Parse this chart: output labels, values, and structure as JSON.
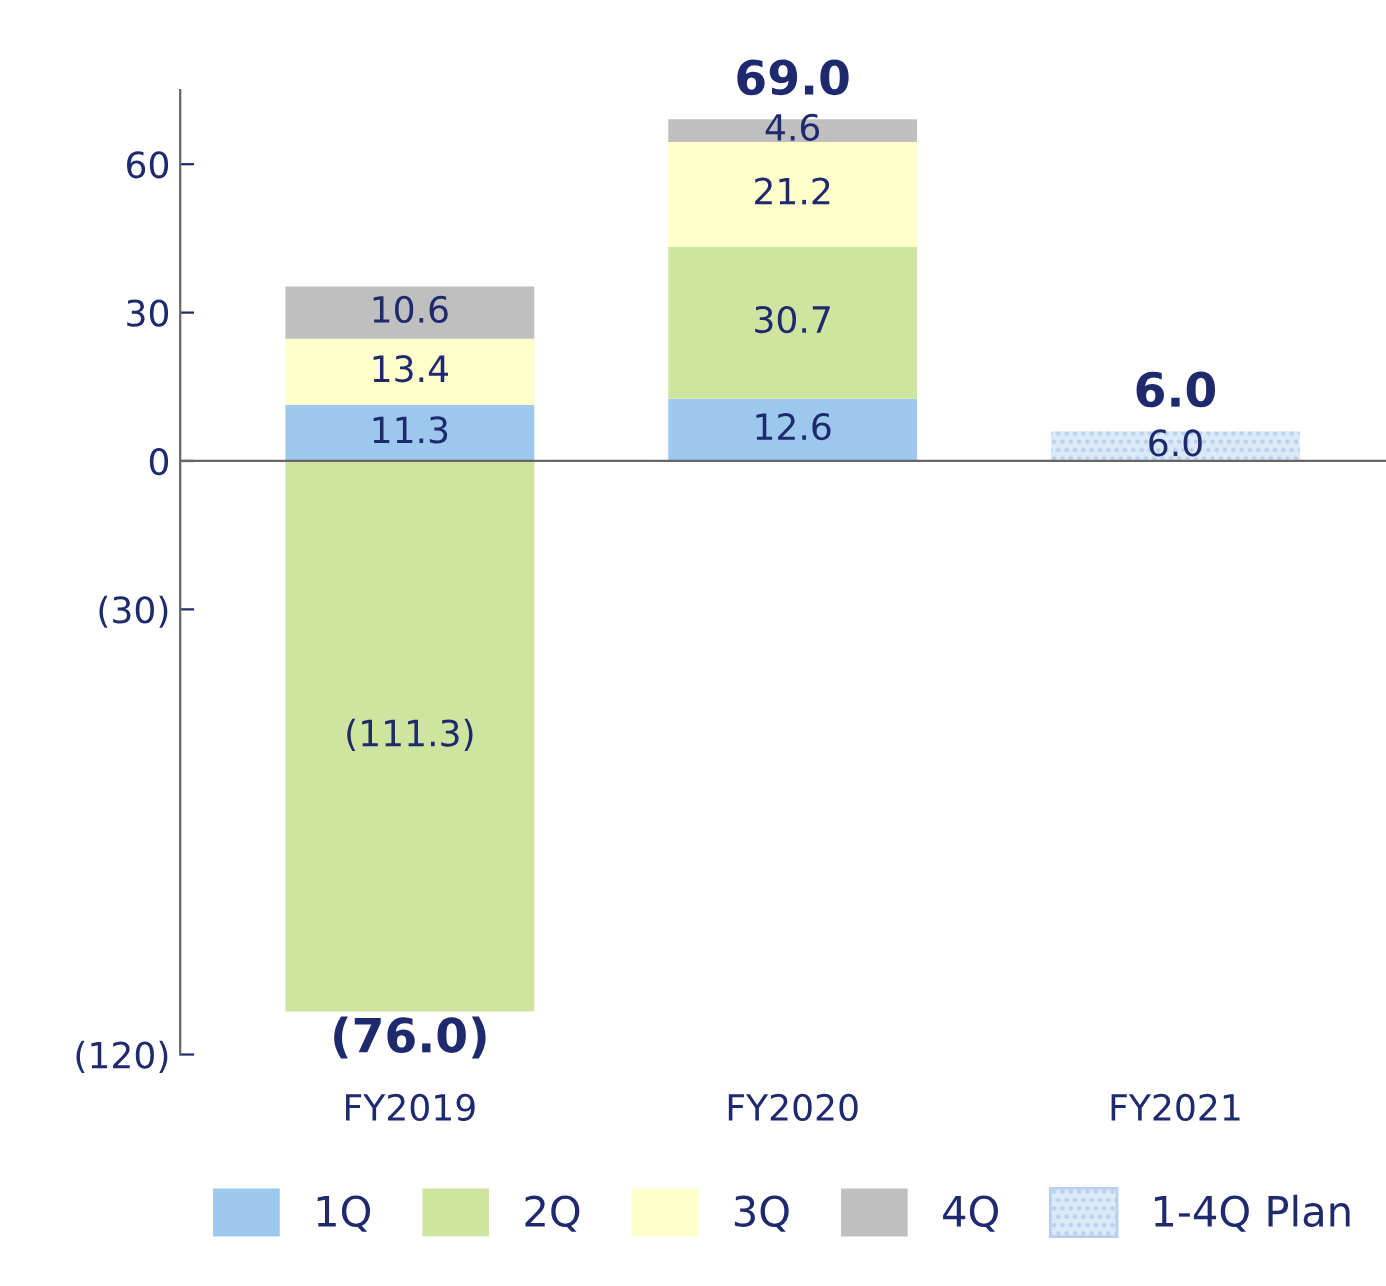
{
  "chart_data": {
    "type": "bar",
    "stacked": true,
    "categories": [
      "FY2019",
      "FY2020",
      "FY2021"
    ],
    "series": [
      {
        "name": "1Q",
        "color": "#9dc8ee",
        "values": [
          11.3,
          12.6,
          null
        ],
        "value_labels": [
          "11.3",
          "12.6",
          null
        ]
      },
      {
        "name": "2Q",
        "color": "#cfe59f",
        "values": [
          -111.3,
          30.7,
          null
        ],
        "value_labels": [
          "(111.3)",
          "30.7",
          null
        ]
      },
      {
        "name": "3Q",
        "color": "#ffffcc",
        "values": [
          13.4,
          21.2,
          null
        ],
        "value_labels": [
          "13.4",
          "21.2",
          null
        ]
      },
      {
        "name": "4Q",
        "color": "#bfbfbf",
        "values": [
          10.6,
          4.6,
          null
        ],
        "value_labels": [
          "10.6",
          "4.6",
          null
        ]
      },
      {
        "name": "1-4Q Plan",
        "color": "#dce9f8",
        "values": [
          null,
          null,
          6.0
        ],
        "value_labels": [
          null,
          null,
          "6.0"
        ]
      }
    ],
    "totals": [
      "(76.0)",
      "69.0",
      "6.0"
    ],
    "ylim": [
      -120,
      75
    ],
    "yticks": [
      {
        "value": -120,
        "label": "(120)"
      },
      {
        "value": -30,
        "label": "(30)"
      },
      0,
      30,
      60
    ],
    "legend": "bottom"
  }
}
